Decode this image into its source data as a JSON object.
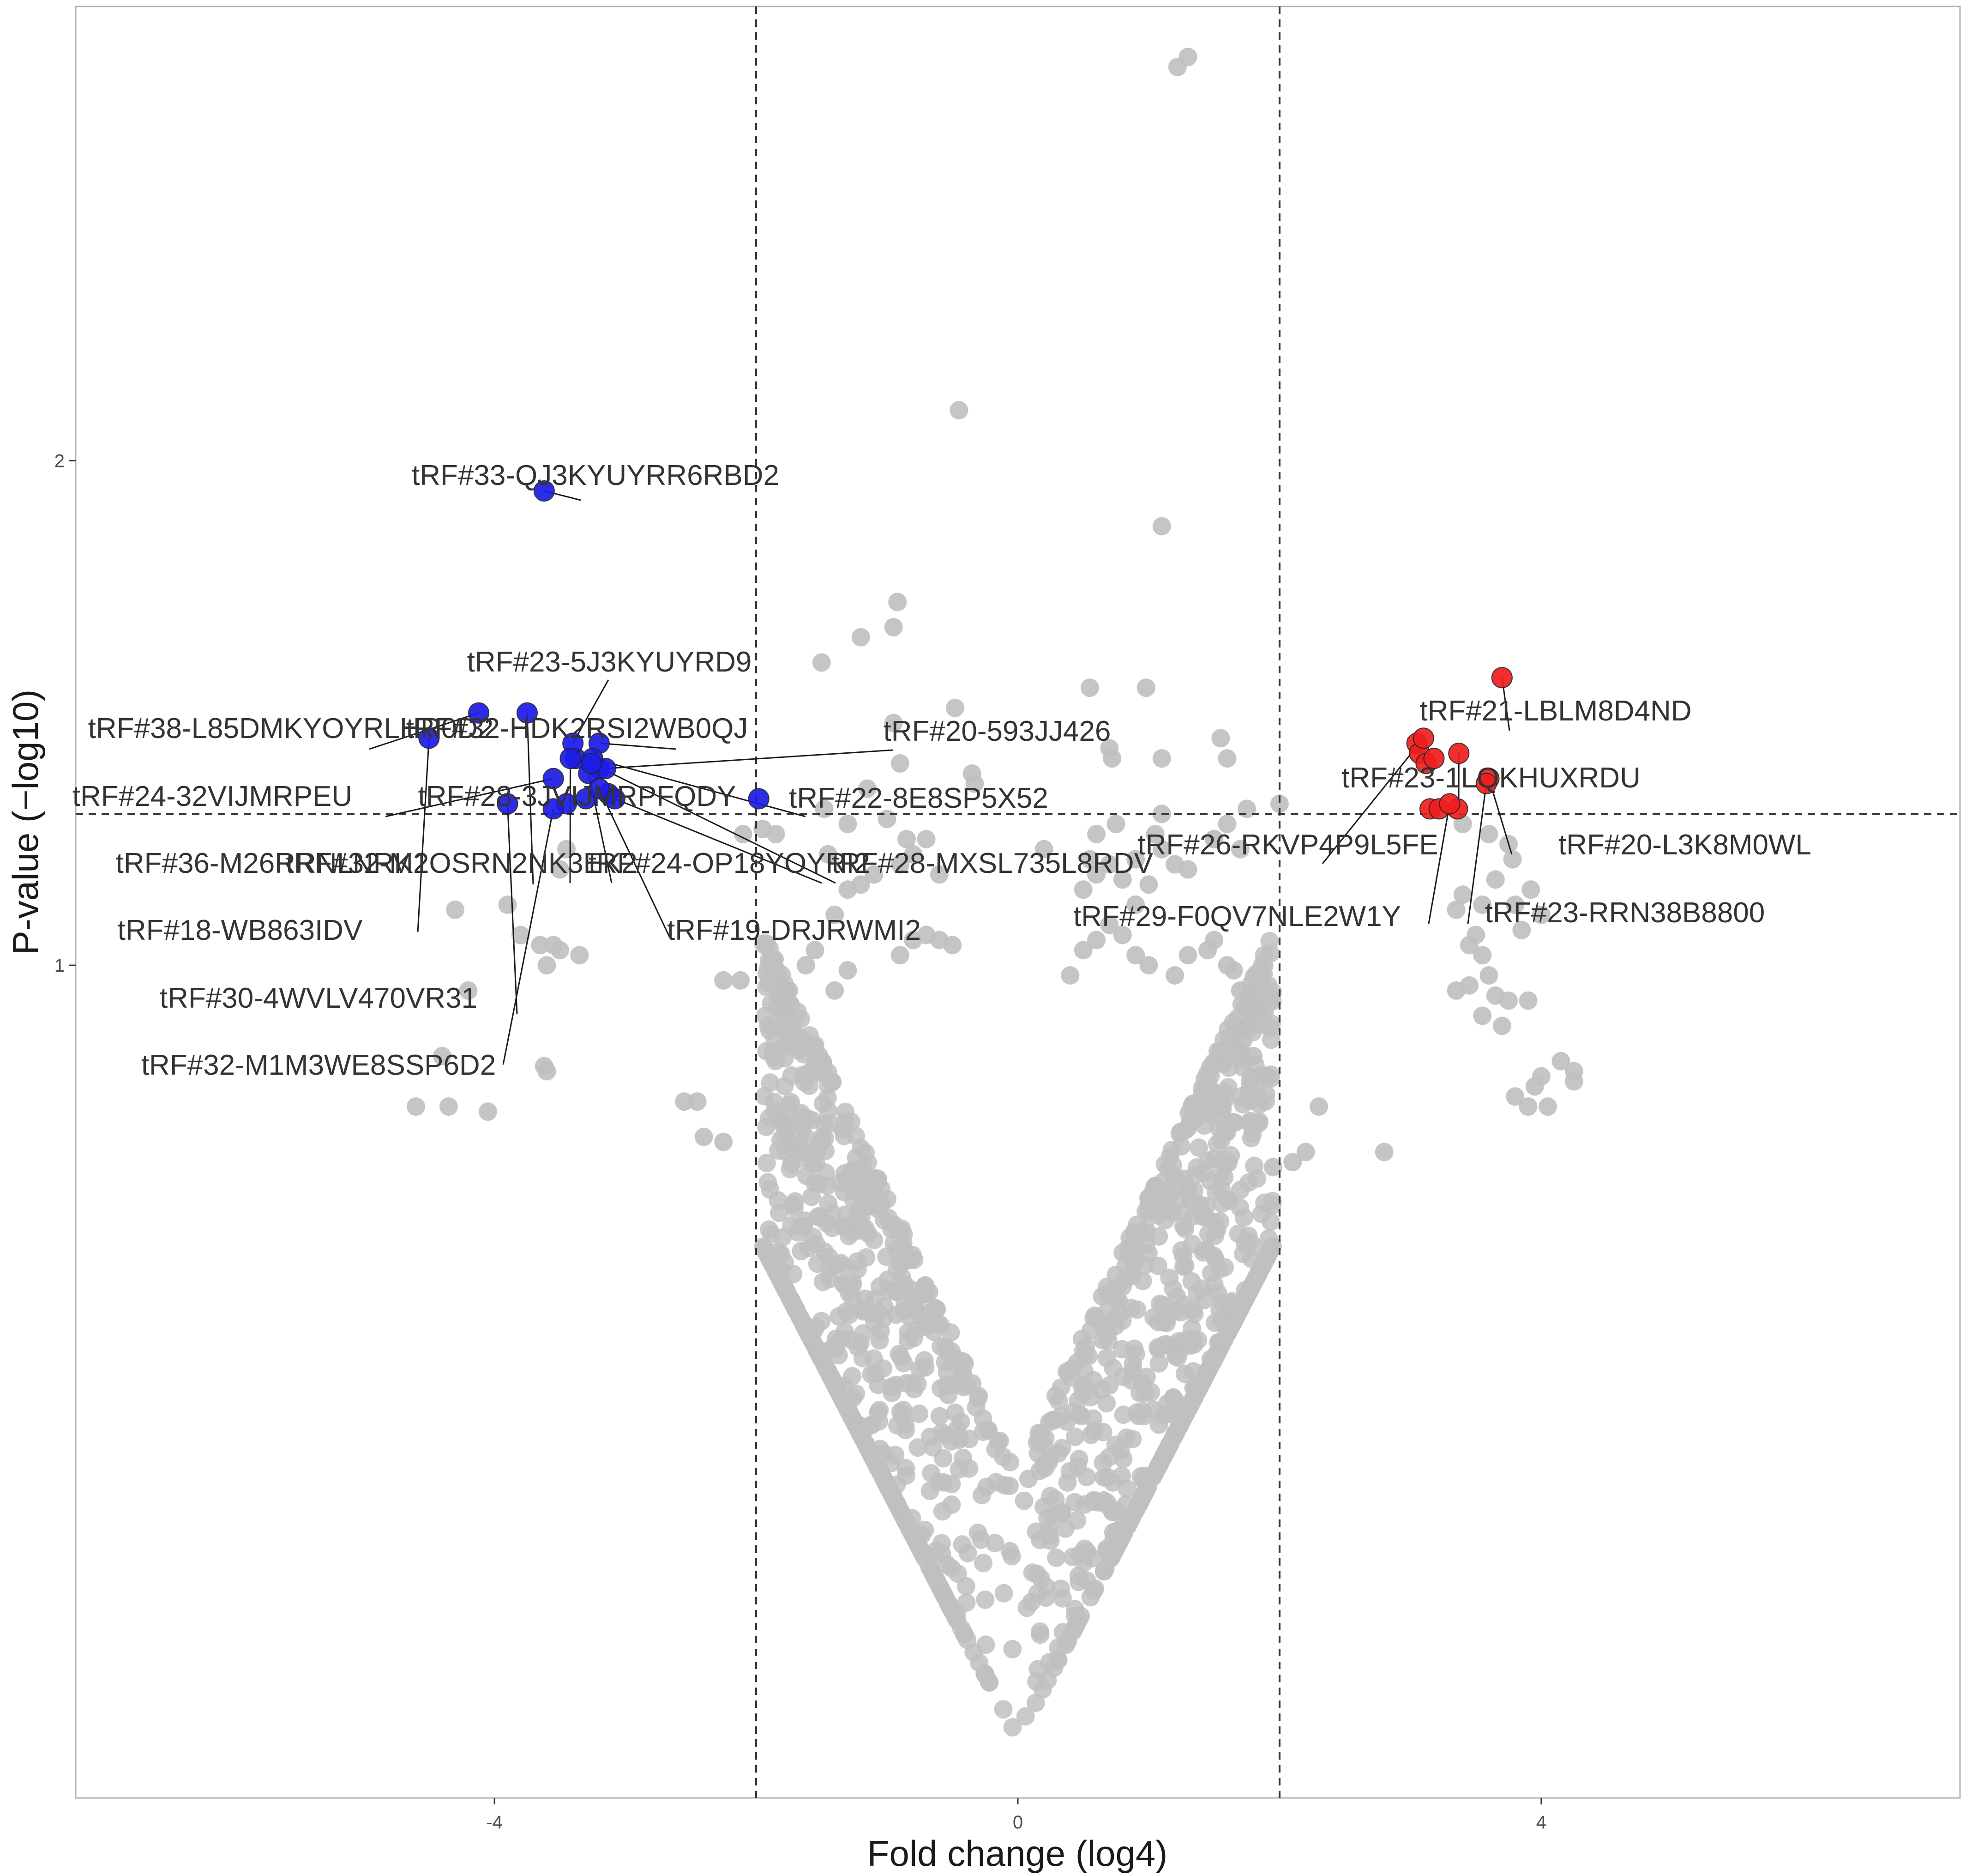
{
  "chart_data": {
    "type": "scatter",
    "title": "",
    "xlabel": "Fold change (log4)",
    "ylabel": "P-value (−log10)",
    "xlim": [
      -7.2,
      7.2
    ],
    "ylim": [
      -0.65,
      2.9
    ],
    "x_ticks": [
      -4,
      0,
      4
    ],
    "y_ticks": [
      1,
      2
    ],
    "x_tick_labels": [
      "-4",
      "0",
      "4"
    ],
    "y_tick_labels": [
      "1",
      "2"
    ],
    "grid": false,
    "thresholds": {
      "fold_change_abs": 2,
      "p_value_neglog10": 1.3
    },
    "colors": {
      "nonsignificant": "#bfbfbf",
      "downregulated": "#1c1ce6",
      "upregulated": "#f01e1e",
      "threshold_line": "#333333",
      "panel_border": "#b3b3b3"
    },
    "labeled_points": [
      {
        "label": "tRF#33-QJ3KYUYRR6RBD2",
        "x": -3.62,
        "y": 1.94,
        "group": "down"
      },
      {
        "label": "tRF#23-5J3KYUYRD9",
        "x": -3.4,
        "y": 1.44,
        "group": "down"
      },
      {
        "label": "tRF#38-L85DMKYOYRLHR0D2",
        "x": -4.12,
        "y": 1.5,
        "group": "down"
      },
      {
        "label": "tRF#32-HDK2RSI2WB0QJ",
        "x": -3.2,
        "y": 1.44,
        "group": "down"
      },
      {
        "label": "tRF#20-593JJ426",
        "x": -3.15,
        "y": 1.39,
        "group": "down"
      },
      {
        "label": "tRF#24-32VIJMRPEU",
        "x": -3.55,
        "y": 1.37,
        "group": "down"
      },
      {
        "label": "tRF#28-3JVIJMRPFQDY",
        "x": -3.75,
        "y": 1.5,
        "group": "down"
      },
      {
        "label": "tRF#22-8E8SP5X52",
        "x": -3.25,
        "y": 1.41,
        "group": "down"
      },
      {
        "label": "tRF#36-M26RRNLNRK1",
        "x": -3.42,
        "y": 1.41,
        "group": "down"
      },
      {
        "label": "tRF#32-M2OSRN2NK3EK2",
        "x": -3.28,
        "y": 1.38,
        "group": "down"
      },
      {
        "label": "tRF#24-OP18YOYRI2",
        "x": -3.26,
        "y": 1.4,
        "group": "down"
      },
      {
        "label": "tRF#28-MXSL735L8RDV",
        "x": -3.08,
        "y": 1.33,
        "group": "down"
      },
      {
        "label": "tRF#18-WB863IDV",
        "x": -4.5,
        "y": 1.45,
        "group": "down"
      },
      {
        "label": "tRF#19-DRJRWMI2",
        "x": -3.2,
        "y": 1.35,
        "group": "down"
      },
      {
        "label": "tRF#30-4WVLV470VR31",
        "x": -3.9,
        "y": 1.32,
        "group": "down"
      },
      {
        "label": "tRF#32-M1M3WE8SSP6D2",
        "x": -3.55,
        "y": 1.31,
        "group": "down"
      },
      {
        "label": "tRF#21-LBLM8D4ND",
        "x": 3.7,
        "y": 1.57,
        "group": "up"
      },
      {
        "label": "tRF#23-1LQKHUXRDU",
        "x": 3.37,
        "y": 1.42,
        "group": "up"
      },
      {
        "label": "tRF#26-RKVP4P9L5FE",
        "x": 3.1,
        "y": 1.45,
        "group": "up"
      },
      {
        "label": "tRF#20-L3K8M0WL",
        "x": 3.6,
        "y": 1.37,
        "group": "up"
      },
      {
        "label": "tRF#29-F0QV7NLE2W1Y",
        "x": 3.3,
        "y": 1.32,
        "group": "up"
      },
      {
        "label": "tRF#23-RRN38B8800",
        "x": 3.58,
        "y": 1.36,
        "group": "up"
      }
    ],
    "unlabeled_significant_points": [
      {
        "x": -3.38,
        "y": 1.41,
        "group": "down"
      },
      {
        "x": -3.2,
        "y": 1.39,
        "group": "down"
      },
      {
        "x": -3.45,
        "y": 1.32,
        "group": "down"
      },
      {
        "x": -3.3,
        "y": 1.33,
        "group": "down"
      },
      {
        "x": -3.13,
        "y": 1.34,
        "group": "down"
      },
      {
        "x": -1.98,
        "y": 1.33,
        "group": "down"
      },
      {
        "x": 3.05,
        "y": 1.44,
        "group": "up"
      },
      {
        "x": 3.07,
        "y": 1.42,
        "group": "up"
      },
      {
        "x": 3.12,
        "y": 1.4,
        "group": "up"
      },
      {
        "x": 3.18,
        "y": 1.41,
        "group": "up"
      },
      {
        "x": 3.15,
        "y": 1.31,
        "group": "up"
      },
      {
        "x": 3.22,
        "y": 1.31,
        "group": "up"
      },
      {
        "x": 3.36,
        "y": 1.31,
        "group": "up"
      }
    ],
    "nonsignificant_points": [
      [
        1.22,
        2.78
      ],
      [
        1.3,
        2.8
      ],
      [
        -0.45,
        2.1
      ],
      [
        1.1,
        1.87
      ],
      [
        -0.92,
        1.72
      ],
      [
        -1.5,
        1.6
      ],
      [
        -0.95,
        1.67
      ],
      [
        -1.2,
        1.65
      ],
      [
        0.55,
        1.55
      ],
      [
        0.98,
        1.55
      ],
      [
        -0.48,
        1.51
      ],
      [
        1.55,
        1.45
      ],
      [
        1.6,
        1.41
      ],
      [
        0.7,
        1.43
      ],
      [
        0.72,
        1.41
      ],
      [
        1.1,
        1.41
      ],
      [
        -0.95,
        1.48
      ],
      [
        -0.9,
        1.4
      ],
      [
        -0.35,
        1.38
      ],
      [
        -0.33,
        1.36
      ],
      [
        -1.15,
        1.35
      ],
      [
        -1.48,
        1.31
      ],
      [
        -1.95,
        1.27
      ],
      [
        -2.1,
        1.26
      ],
      [
        -1.85,
        1.26
      ],
      [
        2.0,
        1.32
      ],
      [
        1.75,
        1.31
      ],
      [
        1.1,
        1.3
      ],
      [
        1.6,
        1.28
      ],
      [
        0.6,
        1.26
      ],
      [
        0.2,
        1.23
      ],
      [
        1.5,
        1.25
      ],
      [
        1.5,
        1.25
      ],
      [
        1.7,
        1.23
      ],
      [
        3.4,
        1.28
      ],
      [
        3.6,
        1.26
      ],
      [
        3.75,
        1.24
      ],
      [
        3.78,
        1.21
      ],
      [
        3.65,
        1.17
      ],
      [
        3.55,
        1.12
      ],
      [
        3.8,
        1.12
      ],
      [
        3.35,
        1.11
      ],
      [
        3.4,
        1.14
      ],
      [
        3.92,
        1.15
      ],
      [
        4.0,
        1.1
      ],
      [
        3.85,
        1.07
      ],
      [
        -3.5,
        1.19
      ],
      [
        -3.45,
        1.23
      ],
      [
        -3.9,
        1.12
      ],
      [
        -4.3,
        1.11
      ],
      [
        -3.8,
        1.06
      ],
      [
        -3.65,
        1.04
      ],
      [
        -3.55,
        1.04
      ],
      [
        -3.5,
        1.03
      ],
      [
        -3.35,
        1.02
      ],
      [
        -3.6,
        1.0
      ],
      [
        -4.2,
        0.95
      ],
      [
        -4.4,
        0.82
      ],
      [
        -3.62,
        0.8
      ],
      [
        -3.6,
        0.79
      ],
      [
        -4.6,
        0.72
      ],
      [
        -4.35,
        0.72
      ],
      [
        -4.05,
        0.71
      ],
      [
        -2.25,
        0.97
      ],
      [
        -2.12,
        0.97
      ],
      [
        -2.55,
        0.73
      ],
      [
        -2.45,
        0.73
      ],
      [
        -2.4,
        0.66
      ],
      [
        -2.25,
        0.65
      ],
      [
        -1.8,
        0.69
      ],
      [
        -1.75,
        0.65
      ],
      [
        3.5,
        1.06
      ],
      [
        3.45,
        1.04
      ],
      [
        3.55,
        1.02
      ],
      [
        3.6,
        0.98
      ],
      [
        3.45,
        0.96
      ],
      [
        3.35,
        0.95
      ],
      [
        3.65,
        0.94
      ],
      [
        3.75,
        0.93
      ],
      [
        3.9,
        0.93
      ],
      [
        3.55,
        0.9
      ],
      [
        3.7,
        0.88
      ],
      [
        4.15,
        0.81
      ],
      [
        4.0,
        0.78
      ],
      [
        3.95,
        0.76
      ],
      [
        3.8,
        0.74
      ],
      [
        3.9,
        0.72
      ],
      [
        4.05,
        0.72
      ],
      [
        4.25,
        0.79
      ],
      [
        4.25,
        0.77
      ],
      [
        2.8,
        0.63
      ],
      [
        2.2,
        0.63
      ],
      [
        2.1,
        0.61
      ],
      [
        1.95,
        0.6
      ],
      [
        2.3,
        0.72
      ],
      [
        1.5,
        1.05
      ],
      [
        1.45,
        1.03
      ],
      [
        1.6,
        1.0
      ],
      [
        1.65,
        0.99
      ],
      [
        1.7,
        0.95
      ],
      [
        1.8,
        0.92
      ],
      [
        1.75,
        0.88
      ],
      [
        1.72,
        0.85
      ],
      [
        1.8,
        0.82
      ],
      [
        1.9,
        0.78
      ],
      [
        -1.55,
        1.03
      ],
      [
        -1.62,
        1.0
      ],
      [
        -1.75,
        0.95
      ],
      [
        -1.8,
        0.92
      ],
      [
        -1.4,
        0.95
      ],
      [
        -1.3,
        0.99
      ],
      [
        -0.9,
        1.02
      ],
      [
        -0.8,
        1.05
      ],
      [
        -0.7,
        1.06
      ],
      [
        -0.6,
        1.05
      ],
      [
        -0.5,
        1.04
      ],
      [
        0.5,
        1.03
      ],
      [
        0.6,
        1.05
      ],
      [
        0.7,
        1.08
      ],
      [
        0.8,
        1.06
      ],
      [
        0.9,
        1.02
      ],
      [
        1.0,
        1.0
      ],
      [
        1.2,
        0.98
      ],
      [
        1.3,
        1.02
      ],
      [
        0.4,
        0.98
      ],
      [
        -1.4,
        1.1
      ],
      [
        -1.3,
        1.15
      ],
      [
        -1.2,
        1.16
      ],
      [
        -1.1,
        1.18
      ],
      [
        -0.9,
        1.2
      ],
      [
        -0.8,
        1.22
      ],
      [
        -0.6,
        1.18
      ],
      [
        0.5,
        1.15
      ],
      [
        0.6,
        1.18
      ],
      [
        0.7,
        1.2
      ],
      [
        0.8,
        1.17
      ],
      [
        0.9,
        1.21
      ],
      [
        1.0,
        1.16
      ],
      [
        1.1,
        1.23
      ],
      [
        1.3,
        1.19
      ],
      [
        -1.45,
        1.22
      ],
      [
        -1.3,
        1.28
      ],
      [
        -1.0,
        1.29
      ],
      [
        -0.85,
        1.25
      ],
      [
        -0.7,
        1.25
      ],
      [
        0.55,
        1.21
      ],
      [
        0.75,
        1.28
      ],
      [
        1.05,
        1.26
      ],
      [
        1.2,
        1.2
      ],
      [
        0.9,
        1.12
      ]
    ]
  }
}
